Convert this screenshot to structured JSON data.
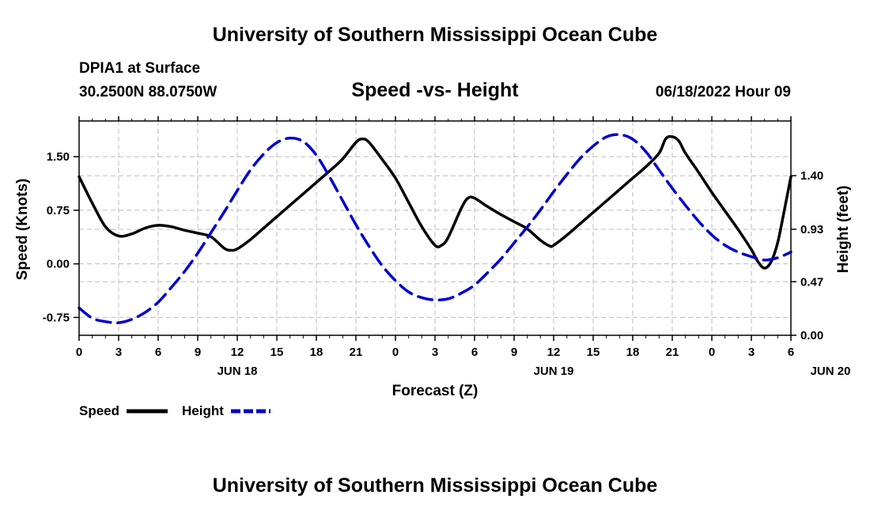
{
  "header": {
    "title": "University of Southern Mississippi Ocean Cube",
    "station": "DPIA1 at Surface",
    "coords": "30.2500N  88.0750W",
    "chart_title": "Speed -vs- Height",
    "datetime": "06/18/2022 Hour 09"
  },
  "footer": {
    "title": "University of Southern Mississippi Ocean Cube"
  },
  "colors": {
    "speed": "#000000",
    "height": "#0000cc",
    "grid": "#bbbbbb"
  },
  "chart_data": {
    "type": "line",
    "title": "Speed -vs- Height",
    "xlabel": "Forecast (Z)",
    "ylabel_left": "Speed (Knots)",
    "ylabel_right": "Height (feet)",
    "x_ticks": [
      "0",
      "3",
      "6",
      "9",
      "12",
      "15",
      "18",
      "21",
      "0",
      "3",
      "6",
      "9",
      "12",
      "15",
      "18",
      "21",
      "0",
      "3",
      "6"
    ],
    "day_labels": [
      {
        "label": "JUN 18",
        "x_hour": 12
      },
      {
        "label": "JUN 19",
        "x_hour": 36
      },
      {
        "label": "JUN 20",
        "x_hour": 57
      }
    ],
    "xlim": [
      0,
      54
    ],
    "ylim_left": [
      -1.0,
      2.0
    ],
    "ylim_right": [
      0.0,
      1.88
    ],
    "y_ticks_left": [
      {
        "value": -0.75,
        "label": "-0.75"
      },
      {
        "value": 0.0,
        "label": "0.00"
      },
      {
        "value": 0.75,
        "label": "0.75"
      },
      {
        "value": 1.5,
        "label": "1.50"
      }
    ],
    "y_ticks_right": [
      {
        "value": 0.0,
        "label": "0.00"
      },
      {
        "value": 0.47,
        "label": "0.47"
      },
      {
        "value": 0.93,
        "label": "0.93"
      },
      {
        "value": 1.4,
        "label": "1.40"
      }
    ],
    "grid": true,
    "legend_position": "bottom-left",
    "series": [
      {
        "name": "Speed",
        "axis": "left",
        "style": "solid",
        "points": [
          [
            0,
            1.22
          ],
          [
            1,
            0.85
          ],
          [
            2,
            0.52
          ],
          [
            3,
            0.39
          ],
          [
            4,
            0.42
          ],
          [
            5,
            0.5
          ],
          [
            6,
            0.54
          ],
          [
            7,
            0.52
          ],
          [
            8,
            0.47
          ],
          [
            9,
            0.43
          ],
          [
            10,
            0.38
          ],
          [
            11,
            0.22
          ],
          [
            11.5,
            0.19
          ],
          [
            12,
            0.21
          ],
          [
            13,
            0.34
          ],
          [
            14,
            0.5
          ],
          [
            15,
            0.66
          ],
          [
            16,
            0.82
          ],
          [
            17,
            0.98
          ],
          [
            18,
            1.14
          ],
          [
            19,
            1.3
          ],
          [
            20,
            1.47
          ],
          [
            21,
            1.7
          ],
          [
            21.5,
            1.75
          ],
          [
            22,
            1.7
          ],
          [
            23,
            1.46
          ],
          [
            24,
            1.2
          ],
          [
            25,
            0.86
          ],
          [
            26,
            0.52
          ],
          [
            27,
            0.26
          ],
          [
            27.5,
            0.26
          ],
          [
            28,
            0.37
          ],
          [
            29,
            0.78
          ],
          [
            29.5,
            0.92
          ],
          [
            30,
            0.92
          ],
          [
            31,
            0.8
          ],
          [
            32,
            0.69
          ],
          [
            33,
            0.59
          ],
          [
            34,
            0.49
          ],
          [
            35,
            0.33
          ],
          [
            35.7,
            0.25
          ],
          [
            36,
            0.26
          ],
          [
            37,
            0.4
          ],
          [
            38,
            0.56
          ],
          [
            39,
            0.72
          ],
          [
            40,
            0.88
          ],
          [
            41,
            1.04
          ],
          [
            42,
            1.2
          ],
          [
            43,
            1.36
          ],
          [
            44,
            1.55
          ],
          [
            44.5,
            1.75
          ],
          [
            45,
            1.78
          ],
          [
            45.5,
            1.72
          ],
          [
            46,
            1.55
          ],
          [
            47,
            1.28
          ],
          [
            48,
            1.0
          ],
          [
            49,
            0.74
          ],
          [
            50,
            0.48
          ],
          [
            51,
            0.2
          ],
          [
            51.5,
            0.03
          ],
          [
            52,
            -0.06
          ],
          [
            52.5,
            0.03
          ],
          [
            53,
            0.3
          ],
          [
            53.5,
            0.75
          ],
          [
            54,
            1.22
          ]
        ]
      },
      {
        "name": "Height",
        "axis": "right",
        "style": "dashed",
        "points": [
          [
            0,
            0.24
          ],
          [
            1,
            0.15
          ],
          [
            2,
            0.12
          ],
          [
            3,
            0.11
          ],
          [
            4,
            0.14
          ],
          [
            5,
            0.2
          ],
          [
            6,
            0.29
          ],
          [
            7,
            0.42
          ],
          [
            8,
            0.56
          ],
          [
            9,
            0.72
          ],
          [
            10,
            0.9
          ],
          [
            11,
            1.08
          ],
          [
            12,
            1.27
          ],
          [
            13,
            1.45
          ],
          [
            14,
            1.59
          ],
          [
            15,
            1.69
          ],
          [
            16,
            1.73
          ],
          [
            17,
            1.7
          ],
          [
            18,
            1.58
          ],
          [
            19,
            1.39
          ],
          [
            20,
            1.18
          ],
          [
            21,
            0.97
          ],
          [
            22,
            0.78
          ],
          [
            23,
            0.61
          ],
          [
            24,
            0.48
          ],
          [
            25,
            0.38
          ],
          [
            26,
            0.33
          ],
          [
            27,
            0.31
          ],
          [
            28,
            0.32
          ],
          [
            29,
            0.37
          ],
          [
            30,
            0.44
          ],
          [
            31,
            0.55
          ],
          [
            32,
            0.67
          ],
          [
            33,
            0.81
          ],
          [
            34,
            0.95
          ],
          [
            35,
            1.1
          ],
          [
            36,
            1.26
          ],
          [
            37,
            1.41
          ],
          [
            38,
            1.55
          ],
          [
            39,
            1.66
          ],
          [
            40,
            1.74
          ],
          [
            41,
            1.76
          ],
          [
            42,
            1.72
          ],
          [
            43,
            1.61
          ],
          [
            44,
            1.45
          ],
          [
            45,
            1.29
          ],
          [
            46,
            1.14
          ],
          [
            47,
            1.0
          ],
          [
            48,
            0.88
          ],
          [
            49,
            0.79
          ],
          [
            50,
            0.73
          ],
          [
            51,
            0.69
          ],
          [
            52,
            0.66
          ],
          [
            53,
            0.68
          ],
          [
            54,
            0.73
          ]
        ]
      }
    ]
  }
}
